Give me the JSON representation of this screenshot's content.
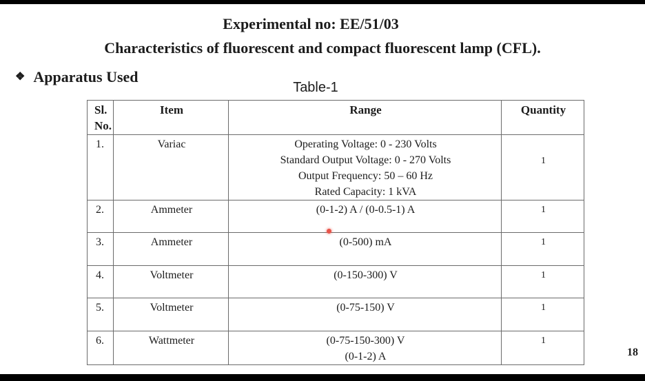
{
  "header": {
    "experiment_no": "Experimental no: EE/51/03",
    "title": "Characteristics of fluorescent and compact fluorescent lamp (CFL).",
    "section_bullet": "❖",
    "section_heading": "Apparatus Used"
  },
  "table": {
    "caption": "Table-1",
    "headers": {
      "sl_no": [
        "Sl.",
        "No."
      ],
      "item": "Item",
      "range": "Range",
      "quantity": "Quantity"
    },
    "rows": [
      {
        "sl": "1.",
        "item": "Variac",
        "range": [
          "Operating Voltage: 0 - 230 Volts",
          "Standard Output Voltage: 0 - 270 Volts",
          "Output Frequency: 50 – 60 Hz",
          "Rated Capacity: 1 kVA"
        ],
        "quantity": "1"
      },
      {
        "sl": "2.",
        "item": "Ammeter",
        "range": [
          "(0-1-2) A / (0-0.5-1) A"
        ],
        "quantity": "1"
      },
      {
        "sl": "3.",
        "item": "Ammeter",
        "range": [
          "(0-500) mA"
        ],
        "quantity": "1"
      },
      {
        "sl": "4.",
        "item": "Voltmeter",
        "range": [
          "(0-150-300) V"
        ],
        "quantity": "1"
      },
      {
        "sl": "5.",
        "item": "Voltmeter",
        "range": [
          "(0-75-150) V"
        ],
        "quantity": "1"
      },
      {
        "sl": "6.",
        "item": "Wattmeter",
        "range": [
          "(0-75-150-300) V",
          "(0-1-2) A"
        ],
        "quantity": "1"
      }
    ]
  },
  "footer": {
    "page_number": "18"
  },
  "colors": {
    "marker": "#e8544a",
    "border": "#6a6a6a"
  }
}
